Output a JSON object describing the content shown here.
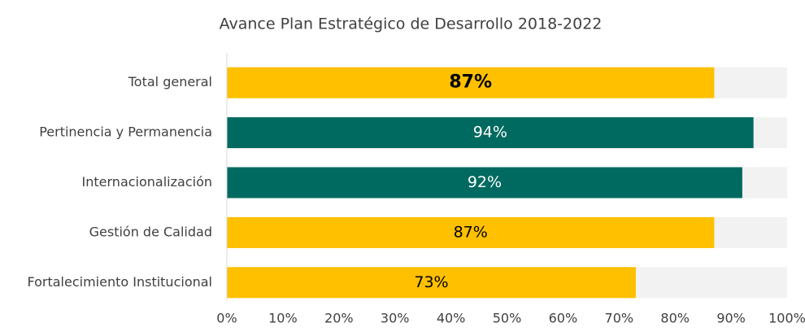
{
  "chart_data": {
    "type": "hbar",
    "title": "Avance Plan Estratégico de Desarrollo 2018-2022",
    "categories": [
      "Total general",
      "Pertinencia y Permanencia",
      "Internacionalización",
      "Gestión de Calidad",
      "Fortalecimiento Institucional"
    ],
    "values": [
      87,
      94,
      92,
      87,
      73
    ],
    "value_labels": [
      "87%",
      "94%",
      "92%",
      "87%",
      "73%"
    ],
    "colors": [
      "#FFC000",
      "#006A60",
      "#006A60",
      "#FFC000",
      "#FFC000"
    ],
    "xlim": [
      0,
      100
    ],
    "xticks": [
      {
        "value": 0,
        "label": "0%"
      },
      {
        "value": 10,
        "label": "10%"
      },
      {
        "value": 20,
        "label": "20%"
      },
      {
        "value": 30,
        "label": "30%"
      },
      {
        "value": 40,
        "label": "40%"
      },
      {
        "value": 50,
        "label": "50%"
      },
      {
        "value": 60,
        "label": "60%"
      },
      {
        "value": 70,
        "label": "70%"
      },
      {
        "value": 80,
        "label": "80%"
      },
      {
        "value": 90,
        "label": "90%"
      },
      {
        "value": 100,
        "label": "100%"
      }
    ]
  }
}
